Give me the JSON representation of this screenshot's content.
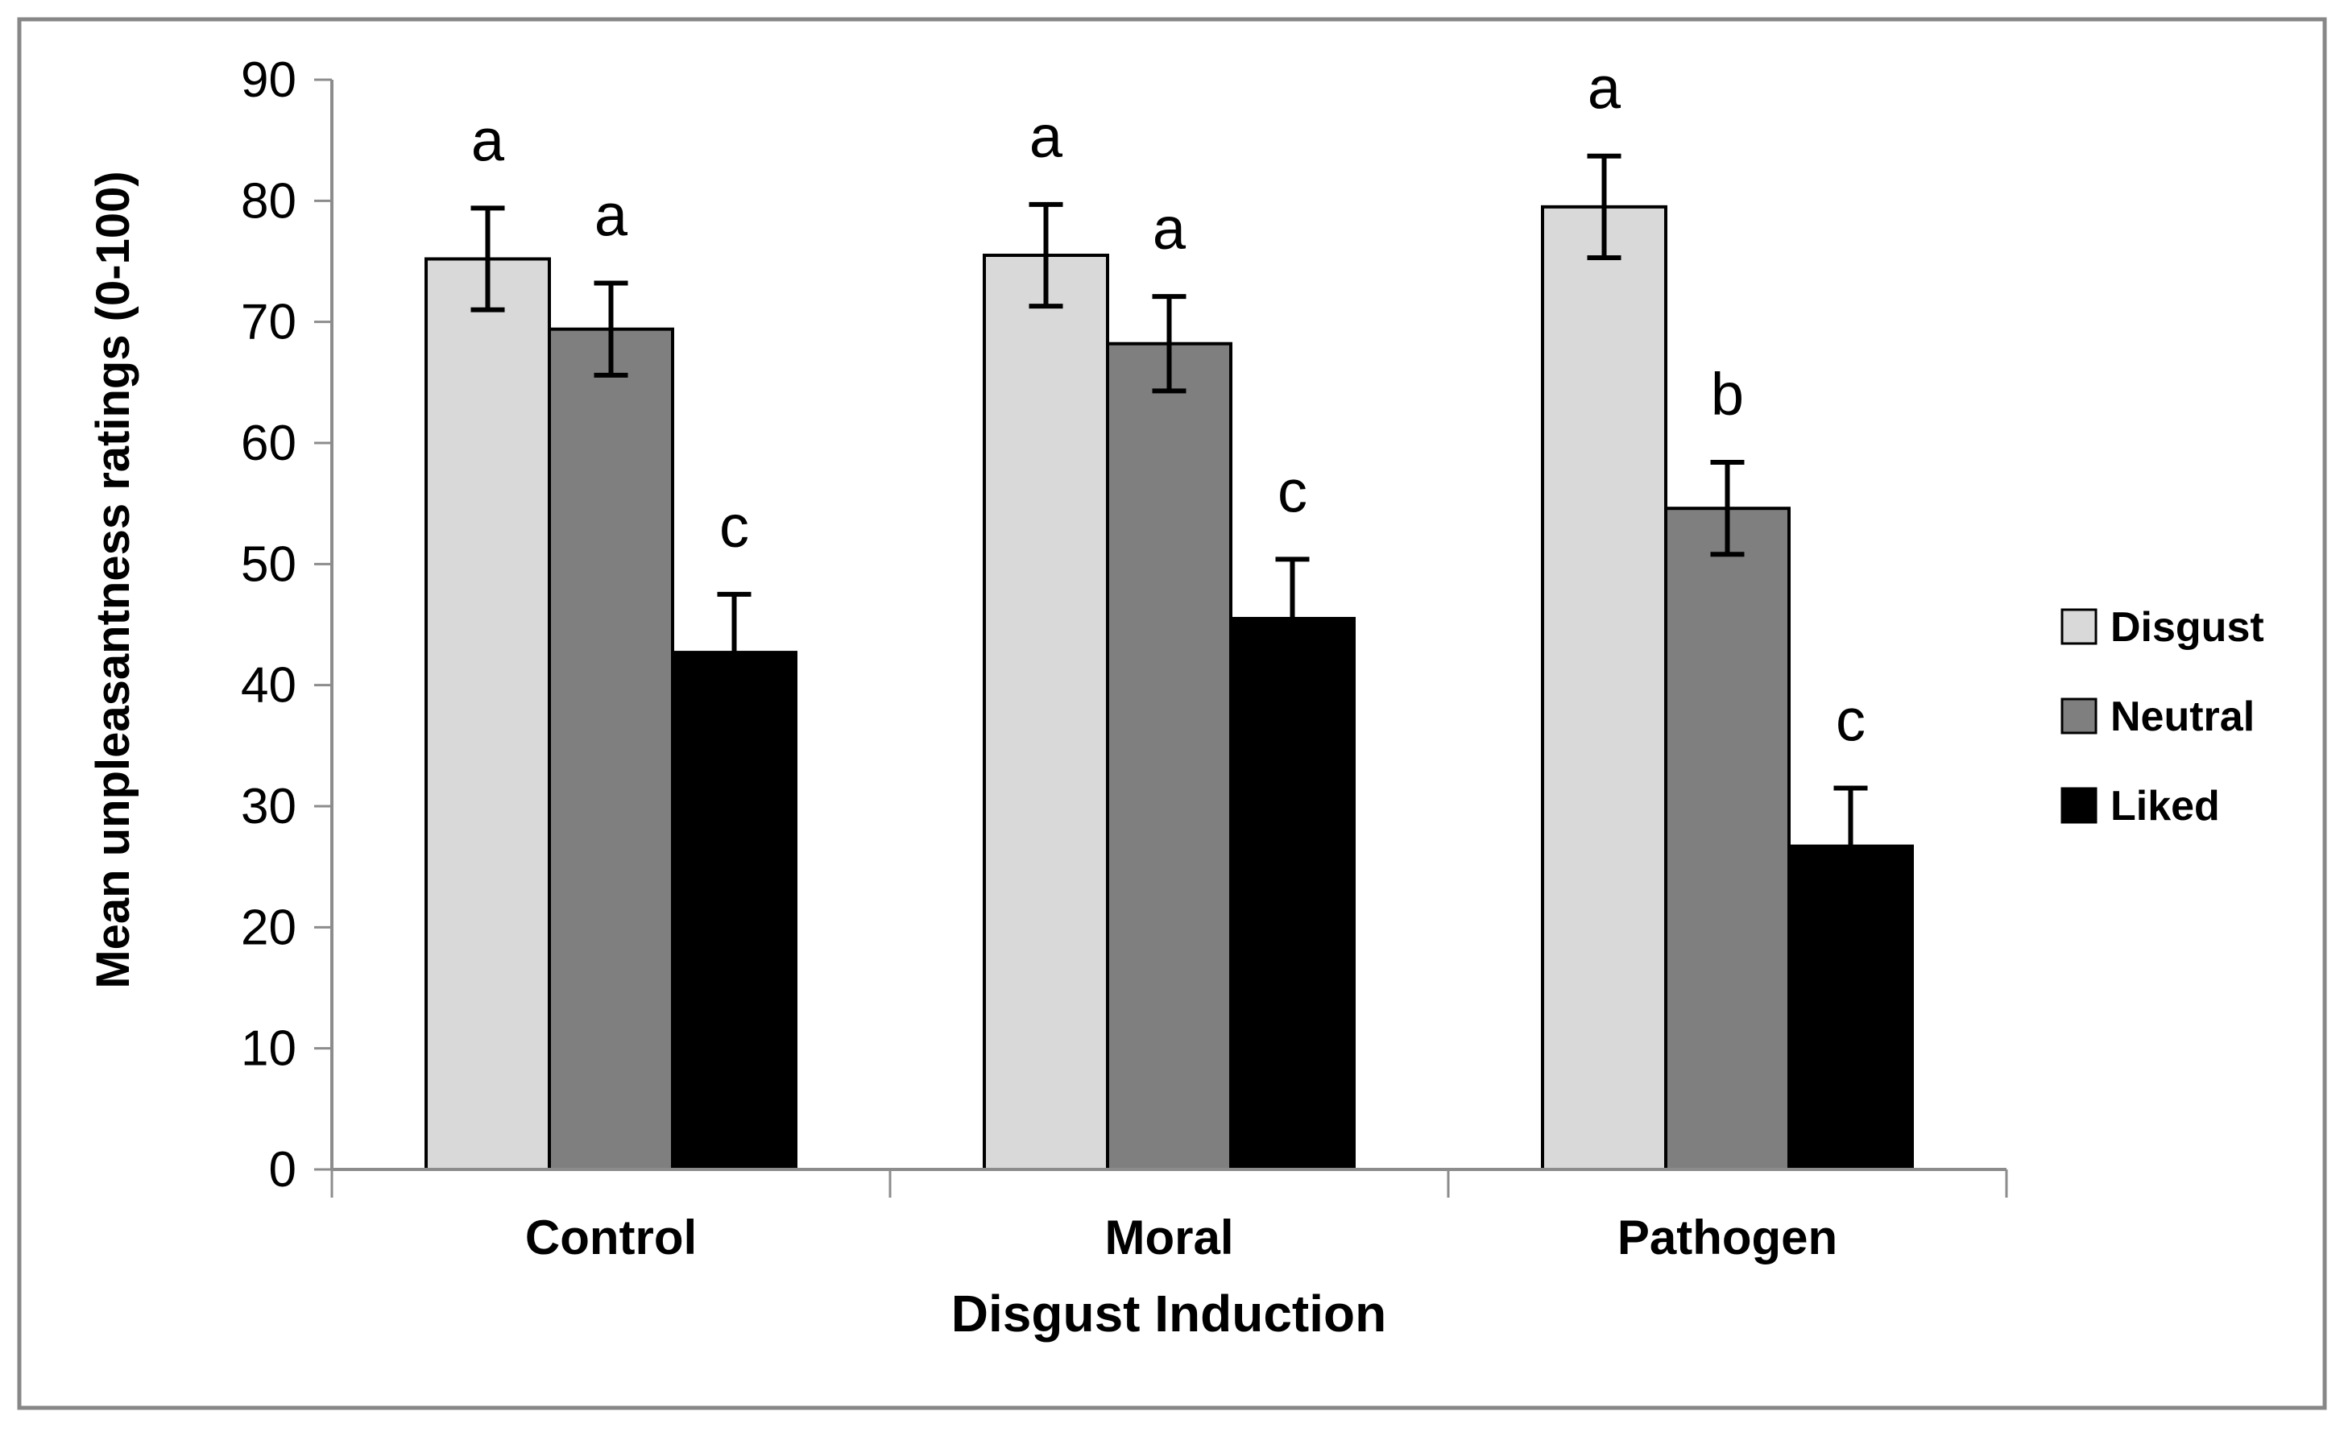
{
  "figure": {
    "background": "#ffffff",
    "frame_color": "#878787",
    "axis_color": "#8c8c8c"
  },
  "chart_data": {
    "type": "bar",
    "title": "",
    "xlabel": "Disgust Induction",
    "ylabel": "Mean unpleasantness  ratings (0-100)",
    "categories": [
      "Control",
      "Moral",
      "Pathogen"
    ],
    "series": [
      {
        "name": "Disgust",
        "color": "#d9d9d9",
        "values": [
          75.2,
          75.5,
          79.5
        ],
        "errors": [
          4.2,
          4.2,
          4.2
        ],
        "letters": [
          "a",
          "a",
          "a"
        ]
      },
      {
        "name": "Neutral",
        "color": "#7f7f7f",
        "values": [
          69.4,
          68.2,
          54.6
        ],
        "errors": [
          3.8,
          3.9,
          3.8
        ],
        "letters": [
          "a",
          "a",
          "b"
        ]
      },
      {
        "name": "Liked",
        "color": "#000000",
        "values": [
          42.7,
          45.5,
          26.7
        ],
        "errors": [
          4.8,
          4.9,
          4.8
        ],
        "letters": [
          "c",
          "c",
          "c"
        ]
      }
    ],
    "y_ticks": [
      0,
      10,
      20,
      30,
      40,
      50,
      60,
      70,
      80,
      90
    ],
    "ylim": [
      0,
      90
    ],
    "grid": false,
    "legend_position": "right",
    "bar_outline_color": "#000000",
    "error_bar_color": "#000000"
  }
}
